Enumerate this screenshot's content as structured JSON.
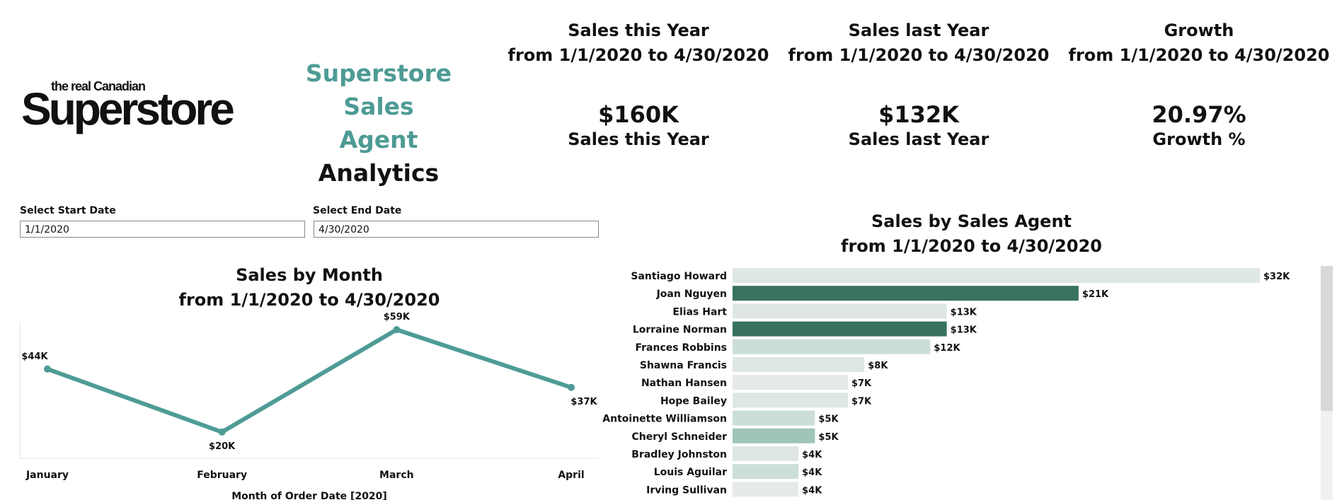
{
  "logo": {
    "tagline": "the real Canadian",
    "wordmark": "Superstore"
  },
  "app_title": {
    "line1": "Superstore Sales",
    "line2": "Agent",
    "line3": "Analytics"
  },
  "kpis": [
    {
      "heading1": "Sales this Year",
      "heading2": "from 1/1/2020 to 4/30/2020",
      "value": "$160K",
      "caption": "Sales this Year"
    },
    {
      "heading1": "Sales last Year",
      "heading2": "from 1/1/2020 to 4/30/2020",
      "value": "$132K",
      "caption": "Sales last Year"
    },
    {
      "heading1": "Growth",
      "heading2": "from 1/1/2020 to 4/30/2020",
      "value": "20.97%",
      "caption": "Growth %"
    }
  ],
  "filters": {
    "start": {
      "label": "Select Start Date",
      "value": "1/1/2020"
    },
    "end": {
      "label": "Select End Date",
      "value": "4/30/2020"
    }
  },
  "colors": {
    "teal": "#4e9b95",
    "dark_green": "#37735f",
    "mid_green": "#9ec5b5",
    "light_green": "#ccdfd6",
    "pale": "#dfe7e3",
    "paler": "#e6eae8"
  },
  "chart_data": [
    {
      "type": "line",
      "title": "Sales by Month",
      "subtitle": "from 1/1/2020 to 4/30/2020",
      "xlabel": "Month of Order Date [2020]",
      "ylabel": "",
      "categories": [
        "January",
        "February",
        "March",
        "April"
      ],
      "values": [
        44,
        20,
        59,
        37
      ],
      "value_labels": [
        "$44K",
        "$20K",
        "$59K",
        "$37K"
      ],
      "ylim": [
        10,
        62
      ],
      "line_color": "#4e9b95"
    },
    {
      "type": "bar",
      "orientation": "horizontal",
      "title": "Sales by Sales Agent",
      "subtitle": "from 1/1/2020 to 4/30/2020",
      "categories": [
        "Santiago Howard",
        "Joan Nguyen",
        "Elias Hart",
        "Lorraine Norman",
        "Frances Robbins",
        "Shawna Francis",
        "Nathan Hansen",
        "Hope Bailey",
        "Antoinette Williamson",
        "Cheryl Schneider",
        "Bradley Johnston",
        "Louis Aguilar",
        "Irving Sullivan"
      ],
      "values": [
        32,
        21,
        13,
        13,
        12,
        8,
        7,
        7,
        5,
        5,
        4,
        4,
        4
      ],
      "value_labels": [
        "$32K",
        "$21K",
        "$13K",
        "$13K",
        "$12K",
        "$8K",
        "$7K",
        "$7K",
        "$5K",
        "$5K",
        "$4K",
        "$4K",
        "$4K"
      ],
      "bar_colors": [
        "#dfe7e3",
        "#37735f",
        "#dfe7e3",
        "#37735f",
        "#ccdfd6",
        "#dfe7e3",
        "#e6eae8",
        "#dfe7e3",
        "#ccdfd6",
        "#9ec5b5",
        "#dfe7e3",
        "#ccdfd6",
        "#e6eae8"
      ]
    }
  ]
}
